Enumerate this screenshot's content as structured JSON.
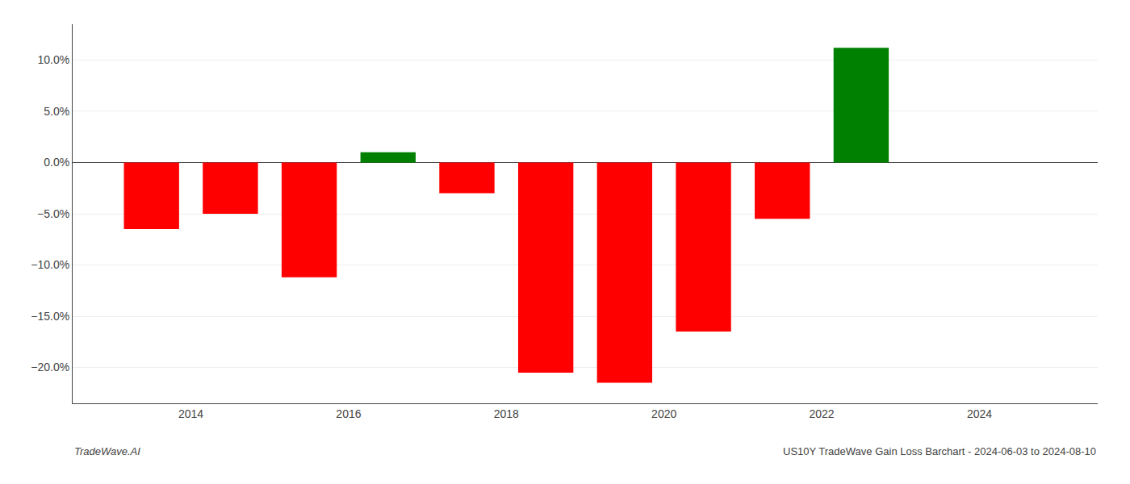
{
  "chart_data": {
    "type": "bar",
    "x": [
      2013.5,
      2014.5,
      2015.5,
      2016.5,
      2017.5,
      2018.5,
      2019.5,
      2020.5,
      2021.5,
      2022.5
    ],
    "values": [
      -6.5,
      -5.0,
      -11.2,
      1.0,
      -3.0,
      -20.5,
      -21.5,
      -16.5,
      -5.5,
      11.2
    ],
    "colors": [
      "#ff0000",
      "#ff0000",
      "#ff0000",
      "#008000",
      "#ff0000",
      "#ff0000",
      "#ff0000",
      "#ff0000",
      "#ff0000",
      "#008000"
    ],
    "xlim": [
      2012.5,
      2025.5
    ],
    "xticks": [
      2014,
      2016,
      2018,
      2020,
      2022,
      2024
    ],
    "ylim": [
      -23.5,
      13.5
    ],
    "yticks": [
      {
        "value": -20.0,
        "label": "−20.0%"
      },
      {
        "value": -15.0,
        "label": "−15.0%"
      },
      {
        "value": -10.0,
        "label": "−10.0%"
      },
      {
        "value": -5.0,
        "label": "−5.0%"
      },
      {
        "value": 0.0,
        "label": "0.0%"
      },
      {
        "value": 5.0,
        "label": "5.0%"
      },
      {
        "value": 10.0,
        "label": "10.0%"
      }
    ],
    "grid": "y",
    "annotations": [
      "TradeWave.AI",
      "US10Y TradeWave Gain Loss Barchart - 2024-06-03 to 2024-08-10"
    ]
  }
}
